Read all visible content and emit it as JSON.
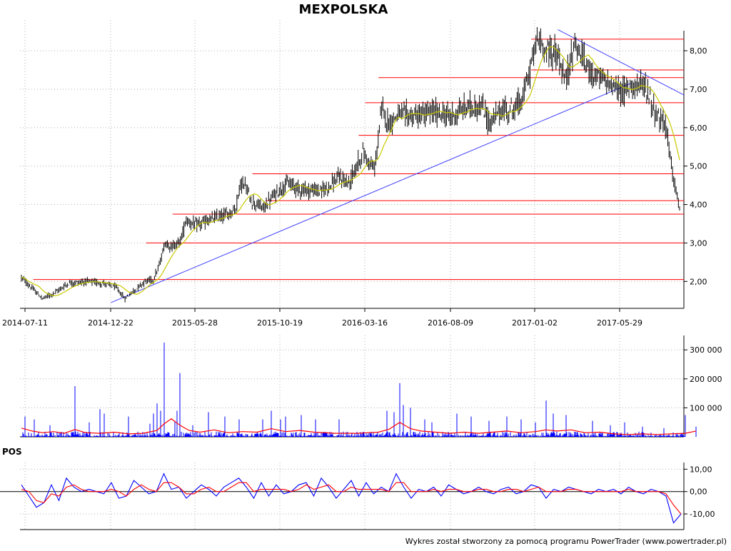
{
  "chart_data": [
    {
      "type": "candlestick",
      "title": "MEXPOLSKA",
      "x_tick_labels": [
        "2014-07-11",
        "2014-12-22",
        "2015-05-28",
        "2015-10-19",
        "2016-03-16",
        "2016-08-09",
        "2017-01-02",
        "2017-05-29"
      ],
      "y_tick_labels": [
        "2,00",
        "3,00",
        "4,00",
        "5,00",
        "6,00",
        "7,00",
        "8,00"
      ],
      "ylim": [
        1.3,
        8.8
      ],
      "grid": true,
      "price_path": [
        [
          0,
          2.1
        ],
        [
          8,
          1.85
        ],
        [
          18,
          1.55
        ],
        [
          28,
          1.7
        ],
        [
          40,
          1.95
        ],
        [
          55,
          2.0
        ],
        [
          70,
          1.95
        ],
        [
          80,
          1.85
        ],
        [
          88,
          1.55
        ],
        [
          95,
          1.75
        ],
        [
          105,
          2.0
        ],
        [
          112,
          2.05
        ],
        [
          117,
          2.4
        ],
        [
          122,
          3.0
        ],
        [
          128,
          2.9
        ],
        [
          135,
          3.05
        ],
        [
          140,
          3.6
        ],
        [
          148,
          3.45
        ],
        [
          160,
          3.6
        ],
        [
          175,
          3.75
        ],
        [
          182,
          3.9
        ],
        [
          186,
          4.55
        ],
        [
          190,
          4.5
        ],
        [
          195,
          4.1
        ],
        [
          205,
          3.9
        ],
        [
          215,
          4.25
        ],
        [
          225,
          4.55
        ],
        [
          238,
          4.4
        ],
        [
          255,
          4.35
        ],
        [
          270,
          4.7
        ],
        [
          278,
          4.55
        ],
        [
          290,
          5.35
        ],
        [
          300,
          4.9
        ],
        [
          306,
          6.5
        ],
        [
          312,
          6.1
        ],
        [
          320,
          6.35
        ],
        [
          335,
          6.3
        ],
        [
          350,
          6.4
        ],
        [
          365,
          6.3
        ],
        [
          380,
          6.55
        ],
        [
          392,
          6.5
        ],
        [
          398,
          6.1
        ],
        [
          405,
          6.4
        ],
        [
          418,
          6.5
        ],
        [
          425,
          6.7
        ],
        [
          432,
          7.5
        ],
        [
          438,
          8.3
        ],
        [
          445,
          8.05
        ],
        [
          455,
          7.9
        ],
        [
          462,
          7.2
        ],
        [
          470,
          8.2
        ],
        [
          480,
          7.6
        ],
        [
          490,
          7.3
        ],
        [
          500,
          7.15
        ],
        [
          510,
          6.9
        ],
        [
          520,
          7.15
        ],
        [
          530,
          7.05
        ],
        [
          540,
          6.3
        ],
        [
          548,
          6.0
        ],
        [
          552,
          5.0
        ],
        [
          556,
          4.3
        ],
        [
          559,
          3.9
        ]
      ],
      "overlay_lines": {
        "support_resistance_levels": [
          2.05,
          3.0,
          3.75,
          4.1,
          4.8,
          5.8,
          6.65,
          7.3,
          7.5,
          8.3
        ],
        "trend_line_up": [
          [
            0.25,
            1.45
          ],
          [
            0.92,
            7.15
          ]
        ],
        "trend_line_down": [
          [
            0.81,
            8.55
          ],
          [
            1.0,
            6.85
          ]
        ]
      },
      "colors": {
        "candles": "#000000",
        "moving_average": "#c8c800",
        "levels": "#ff0000",
        "trend_lines": "#4040ff"
      }
    },
    {
      "type": "bar",
      "title": "",
      "y_tick_labels": [
        "100 000",
        "200 000",
        "300 000"
      ],
      "ylim": [
        0,
        330000
      ],
      "spikes": [
        [
          5,
          70000
        ],
        [
          18,
          60000
        ],
        [
          40,
          40000
        ],
        [
          75,
          175000
        ],
        [
          95,
          50000
        ],
        [
          110,
          95000
        ],
        [
          116,
          80000
        ],
        [
          150,
          70000
        ],
        [
          180,
          45000
        ],
        [
          185,
          80000
        ],
        [
          190,
          115000
        ],
        [
          195,
          90000
        ],
        [
          200,
          325000
        ],
        [
          215,
          55000
        ],
        [
          218,
          90000
        ],
        [
          222,
          220000
        ],
        [
          240,
          40000
        ],
        [
          262,
          85000
        ],
        [
          285,
          70000
        ],
        [
          305,
          60000
        ],
        [
          338,
          60000
        ],
        [
          350,
          90000
        ],
        [
          363,
          60000
        ],
        [
          370,
          70000
        ],
        [
          392,
          75000
        ],
        [
          412,
          60000
        ],
        [
          445,
          60000
        ],
        [
          512,
          90000
        ],
        [
          522,
          85000
        ],
        [
          530,
          185000
        ],
        [
          535,
          110000
        ],
        [
          545,
          100000
        ],
        [
          565,
          60000
        ],
        [
          575,
          50000
        ],
        [
          610,
          80000
        ],
        [
          630,
          70000
        ],
        [
          655,
          55000
        ],
        [
          680,
          70000
        ],
        [
          700,
          60000
        ],
        [
          720,
          50000
        ],
        [
          735,
          125000
        ],
        [
          745,
          80000
        ],
        [
          763,
          75000
        ],
        [
          800,
          55000
        ],
        [
          825,
          40000
        ],
        [
          845,
          50000
        ],
        [
          870,
          35000
        ],
        [
          900,
          30000
        ],
        [
          930,
          75000
        ],
        [
          945,
          35000
        ]
      ],
      "moving_average_line": [
        [
          0,
          30000
        ],
        [
          15,
          20000
        ],
        [
          30,
          14000
        ],
        [
          45,
          18000
        ],
        [
          60,
          12000
        ],
        [
          75,
          25000
        ],
        [
          90,
          14000
        ],
        [
          110,
          12000
        ],
        [
          130,
          16000
        ],
        [
          150,
          10000
        ],
        [
          170,
          12000
        ],
        [
          190,
          22000
        ],
        [
          200,
          45000
        ],
        [
          210,
          62000
        ],
        [
          222,
          40000
        ],
        [
          235,
          22000
        ],
        [
          250,
          16000
        ],
        [
          270,
          24000
        ],
        [
          290,
          14000
        ],
        [
          310,
          18000
        ],
        [
          330,
          16000
        ],
        [
          350,
          28000
        ],
        [
          370,
          18000
        ],
        [
          390,
          22000
        ],
        [
          410,
          16000
        ],
        [
          440,
          12000
        ],
        [
          470,
          12000
        ],
        [
          500,
          16000
        ],
        [
          515,
          26000
        ],
        [
          530,
          50000
        ],
        [
          545,
          28000
        ],
        [
          560,
          20000
        ],
        [
          580,
          16000
        ],
        [
          600,
          12000
        ],
        [
          620,
          16000
        ],
        [
          640,
          12000
        ],
        [
          660,
          16000
        ],
        [
          680,
          20000
        ],
        [
          700,
          14000
        ],
        [
          720,
          18000
        ],
        [
          735,
          24000
        ],
        [
          750,
          20000
        ],
        [
          770,
          24000
        ],
        [
          790,
          14000
        ],
        [
          810,
          16000
        ],
        [
          830,
          10000
        ],
        [
          850,
          8000
        ],
        [
          870,
          10000
        ],
        [
          890,
          8000
        ],
        [
          910,
          10000
        ],
        [
          930,
          12000
        ],
        [
          945,
          20000
        ]
      ],
      "colors": {
        "bars": "#0000ff",
        "moving_average": "#ff0000"
      }
    },
    {
      "type": "line",
      "title": "POS",
      "y_tick_labels": [
        "10,00",
        "0,00",
        "-10,00"
      ],
      "ylim": [
        -17,
        13
      ],
      "series": [
        {
          "values": [
            3,
            -2,
            -7,
            -5,
            3,
            -4,
            6,
            2,
            0,
            1,
            0,
            -1,
            4,
            -3,
            -2,
            5,
            2,
            -1,
            0,
            8,
            1,
            2,
            -3,
            0,
            3,
            1,
            -2,
            2,
            4,
            6,
            2,
            -3,
            4,
            -2,
            3,
            -1,
            0,
            3,
            4,
            -2,
            6,
            2,
            -3,
            1,
            5,
            -2,
            4,
            -1,
            2,
            0,
            8,
            2,
            -3,
            1,
            0,
            2,
            -2,
            3,
            1,
            -1,
            0,
            2,
            0,
            -1,
            1,
            2,
            -1,
            0,
            3,
            2,
            -3,
            1,
            0,
            2,
            1,
            0,
            -1,
            1,
            0,
            1,
            -1,
            2,
            0,
            -1,
            1,
            0,
            -2,
            -14,
            -10
          ],
          "color": "#0000ff"
        },
        {
          "values": [
            1,
            0,
            -4,
            -5,
            -1,
            -2,
            2,
            3,
            1,
            0,
            0,
            0,
            1,
            0,
            -2,
            1,
            3,
            1,
            0,
            4,
            4,
            2,
            -1,
            -1,
            1,
            2,
            0,
            0,
            2,
            4,
            4,
            0,
            1,
            1,
            1,
            1,
            0,
            1,
            3,
            1,
            2,
            3,
            0,
            0,
            2,
            1,
            1,
            1,
            1,
            0,
            4,
            4,
            0,
            0,
            0,
            1,
            0,
            1,
            1,
            0,
            0,
            1,
            1,
            0,
            0,
            1,
            1,
            0,
            1,
            2,
            0,
            0,
            0,
            1,
            1,
            0,
            0,
            0,
            0,
            0,
            0,
            1,
            0,
            0,
            0,
            0,
            -1,
            -6,
            -10
          ],
          "color": "#ff0000"
        }
      ]
    }
  ],
  "footer": {
    "text": "Wykres został stworzony za pomocą programu PowerTrader (www.powertrader.pl)"
  }
}
